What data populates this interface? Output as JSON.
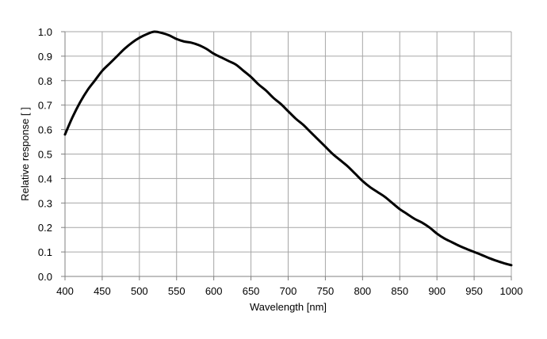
{
  "chart_data": {
    "type": "line",
    "title": "",
    "xlabel": "Wavelength [nm]",
    "ylabel": "Relative response [ ]",
    "xlim": [
      400,
      1000
    ],
    "ylim": [
      0,
      1
    ],
    "grid": true,
    "x_ticks": [
      "400",
      "450",
      "500",
      "550",
      "600",
      "650",
      "700",
      "750",
      "800",
      "850",
      "900",
      "950",
      "1000"
    ],
    "y_ticks": [
      "0.0",
      "0.1",
      "0.2",
      "0.3",
      "0.4",
      "0.5",
      "0.6",
      "0.7",
      "0.8",
      "0.9",
      "1.0"
    ],
    "colors": {
      "line": "#000000",
      "grid": "#a6a6a6",
      "axis": "#808080"
    },
    "series": [
      {
        "x": [
          400,
          410,
          420,
          430,
          440,
          450,
          460,
          470,
          480,
          490,
          500,
          510,
          520,
          530,
          540,
          550,
          560,
          570,
          580,
          590,
          600,
          610,
          620,
          630,
          640,
          650,
          660,
          670,
          680,
          690,
          700,
          710,
          720,
          730,
          740,
          750,
          760,
          770,
          780,
          790,
          800,
          810,
          820,
          830,
          840,
          850,
          860,
          870,
          880,
          890,
          900,
          910,
          920,
          930,
          940,
          950,
          960,
          970,
          980,
          990,
          1000
        ],
        "y": [
          0.58,
          0.65,
          0.71,
          0.76,
          0.8,
          0.84,
          0.87,
          0.9,
          0.93,
          0.955,
          0.975,
          0.99,
          1.0,
          0.995,
          0.985,
          0.97,
          0.96,
          0.955,
          0.945,
          0.93,
          0.91,
          0.895,
          0.88,
          0.865,
          0.84,
          0.815,
          0.785,
          0.76,
          0.73,
          0.705,
          0.675,
          0.645,
          0.62,
          0.59,
          0.56,
          0.53,
          0.5,
          0.475,
          0.45,
          0.42,
          0.39,
          0.365,
          0.345,
          0.325,
          0.3,
          0.275,
          0.255,
          0.235,
          0.22,
          0.2,
          0.175,
          0.155,
          0.14,
          0.125,
          0.112,
          0.1,
          0.088,
          0.075,
          0.064,
          0.054,
          0.046
        ]
      }
    ]
  }
}
